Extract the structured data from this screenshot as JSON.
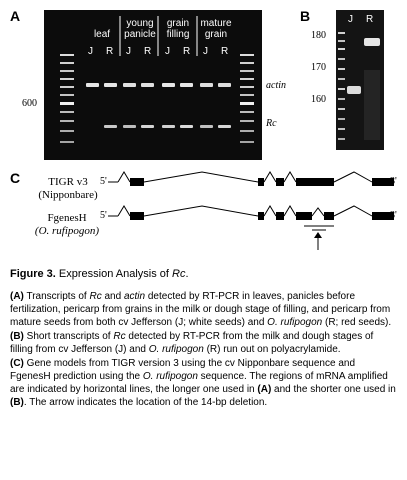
{
  "panel_a": {
    "letter": "A",
    "groups": [
      {
        "label_line1": "leaf",
        "label_line2": ""
      },
      {
        "label_line1": "young",
        "label_line2": "panicle"
      },
      {
        "label_line1": "grain",
        "label_line2": "filling"
      },
      {
        "label_line1": "mature",
        "label_line2": "grain"
      }
    ],
    "lanes": [
      "J",
      "R",
      "J",
      "R",
      "J",
      "R",
      "J",
      "R"
    ],
    "marker_label": "600",
    "band_labels": {
      "actin": "actin",
      "rc": "Rc"
    }
  },
  "panel_b": {
    "letter": "B",
    "lanes": [
      "J",
      "R"
    ],
    "markers": [
      "180",
      "170",
      "160"
    ]
  },
  "panel_c": {
    "letter": "C",
    "models": [
      {
        "line1": "TIGR v3",
        "line2": "(Nipponbare)",
        "five": "5'",
        "three": "3'"
      },
      {
        "line1": "FgenesH",
        "line2": "(O. rufipogon)",
        "five": "5'",
        "three": "3'"
      }
    ]
  },
  "caption": {
    "figure": "Figure 3.",
    "title_plain": "Expression Analysis of ",
    "title_italic": "Rc",
    "title_end": ".",
    "a": {
      "tag": "(A)",
      "t1": " Transcripts of ",
      "i1": "Rc",
      "t2": " and ",
      "i2": "actin",
      "t3": " detected by RT-PCR in leaves, panicles before fertilization, pericarp from grains in the milk or dough stage of filling, and pericarp from mature seeds from both cv Jefferson (J; white seeds) and ",
      "i3": "O. rufipogon",
      "t4": " (R; red seeds)."
    },
    "b": {
      "tag": "(B)",
      "t1": " Short transcripts of ",
      "i1": "Rc",
      "t2": " detected by RT-PCR from the milk and dough stages of filling from cv Jefferson (J) and ",
      "i2": "O. rufipogon",
      "t3": " (R) run out on polyacrylamide."
    },
    "c": {
      "tag": "(C)",
      "t1": " Gene models from TIGR version 3 using the cv Nipponbare sequence and FgenesH prediction using the ",
      "i1": "O. rufipogon",
      "t2": " sequence. The regions of mRNA amplified are indicated by horizontal lines, the longer one used in ",
      "b1": "(A)",
      "t3": " and the shorter one used in ",
      "b2": "(B)",
      "t4": ". The arrow indicates the location of the 14-bp deletion."
    }
  }
}
